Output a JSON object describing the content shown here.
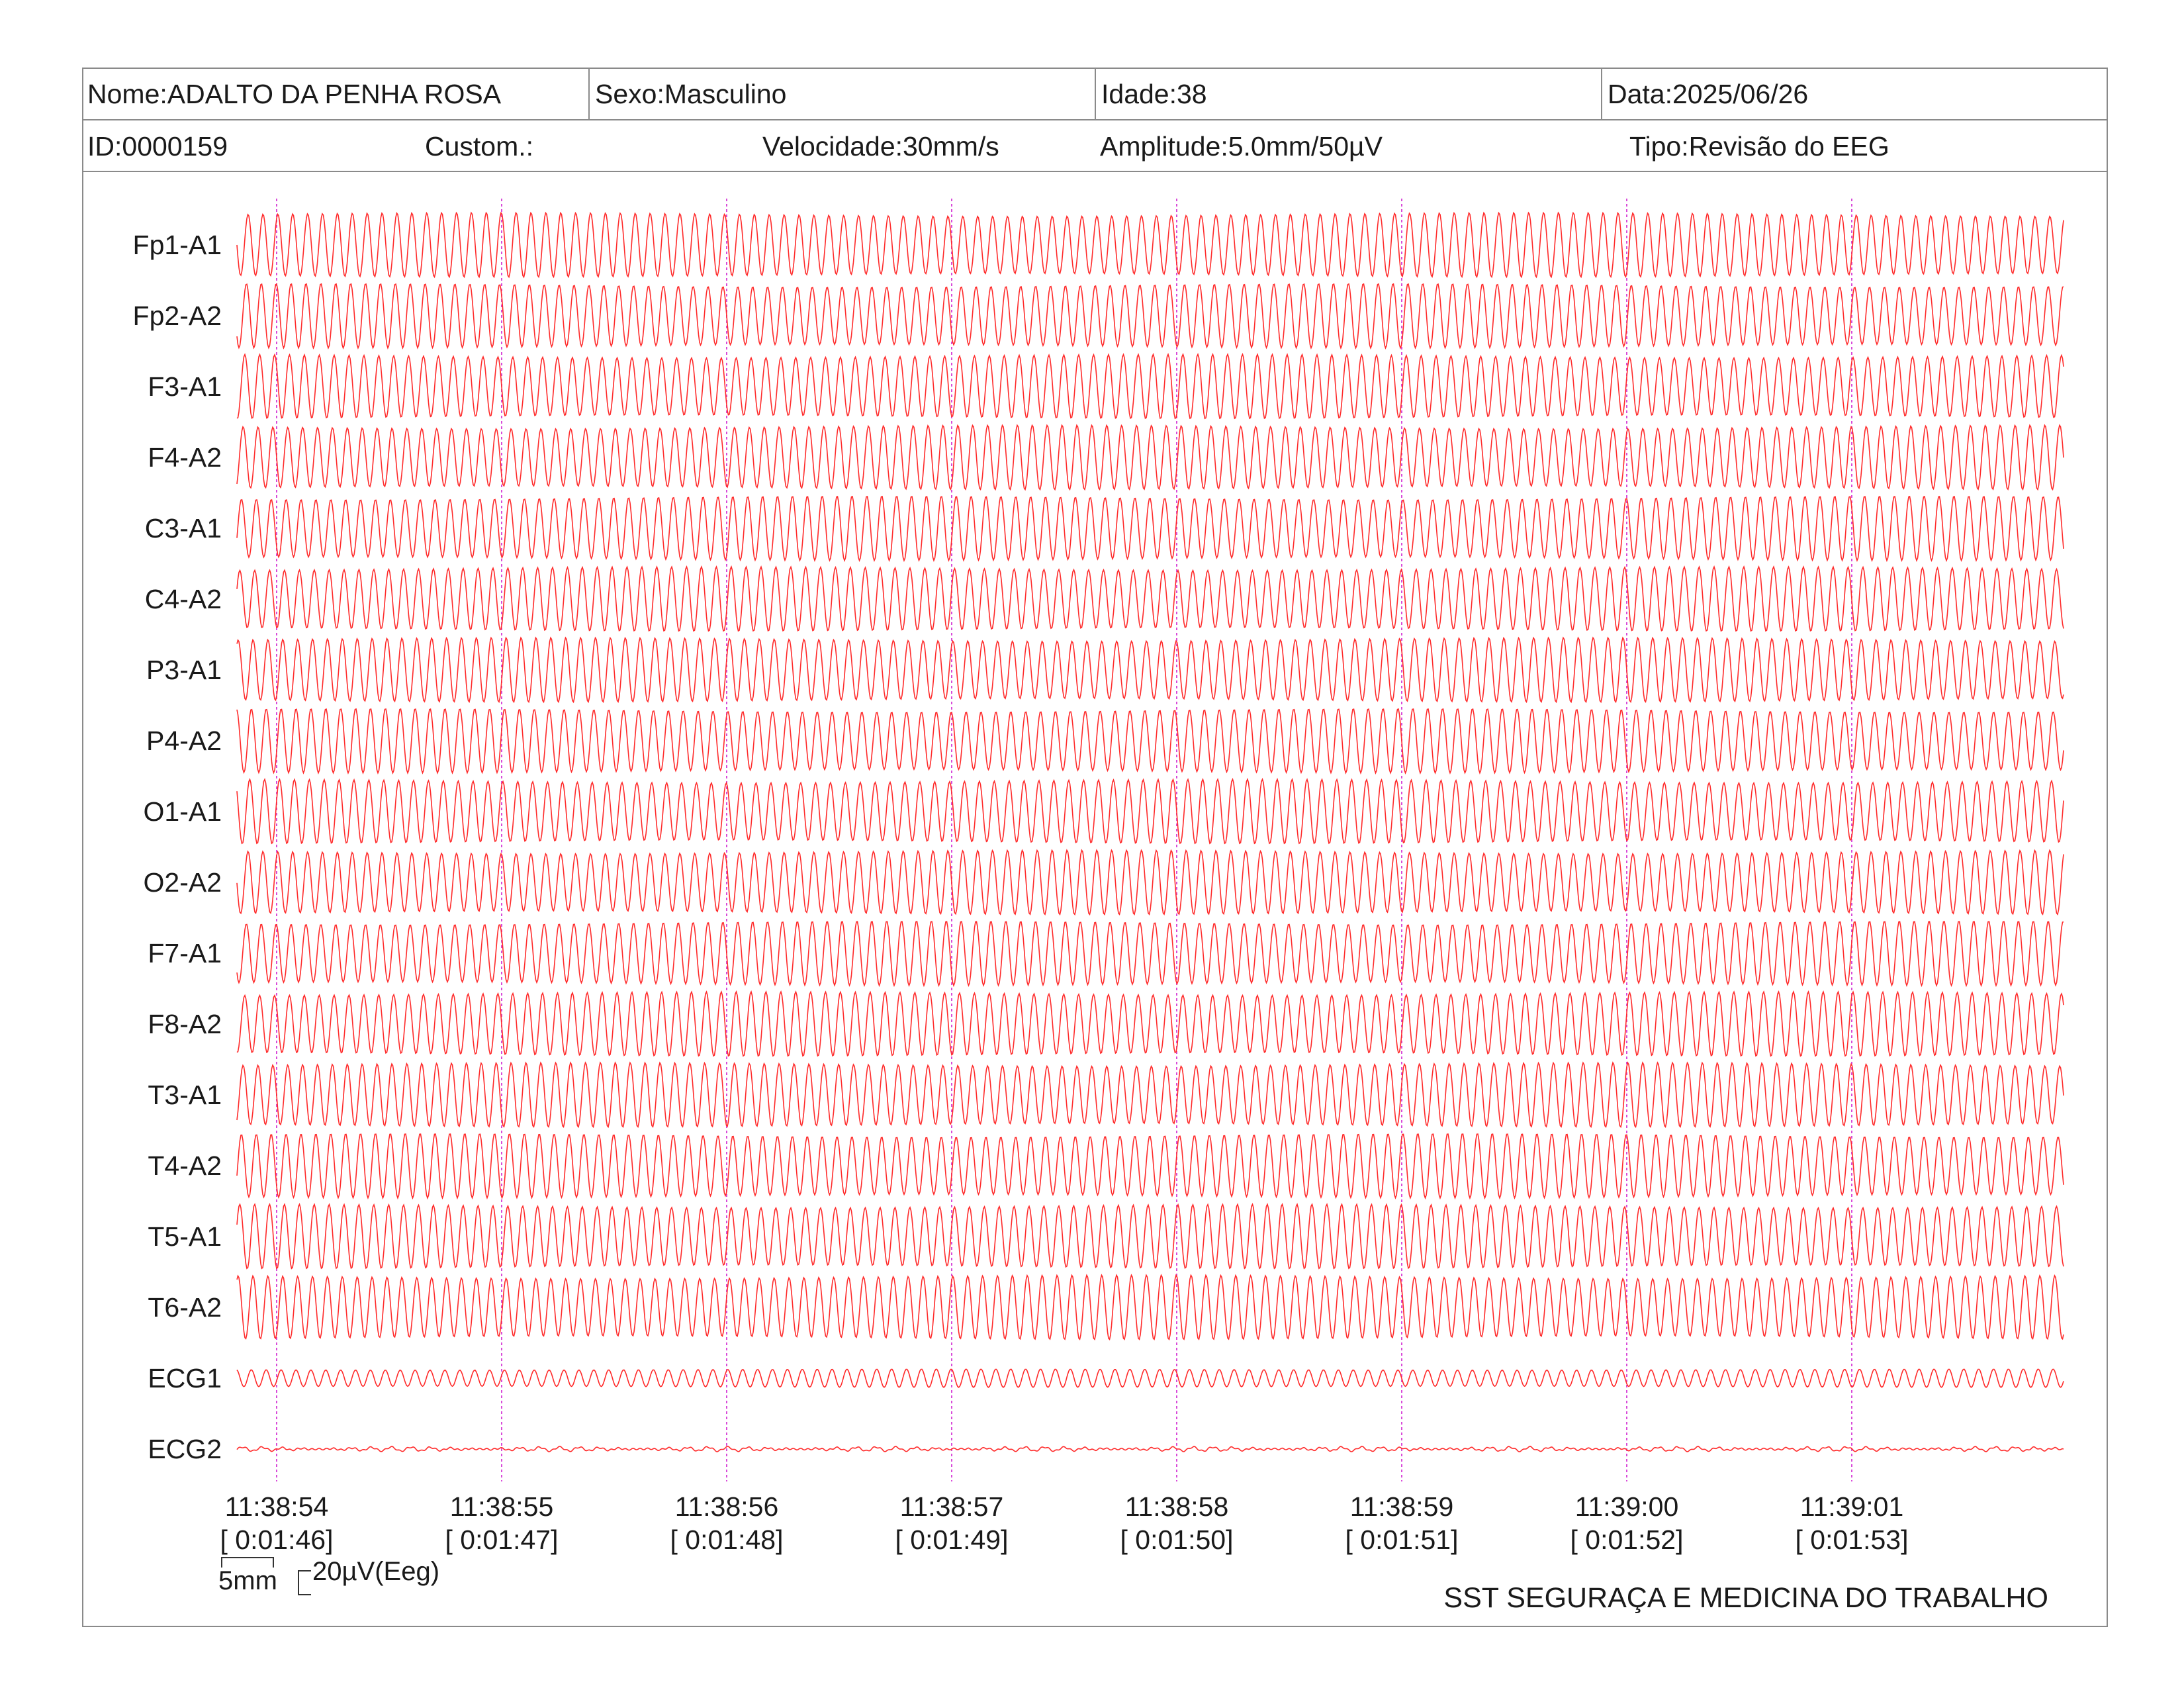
{
  "header": {
    "nome": "Nome:ADALTO DA PENHA ROSA",
    "sexo": "Sexo:Masculino",
    "idade": "Idade:38",
    "data": "Data:2025/06/26",
    "id": "ID:0000159",
    "custom": "Custom.:",
    "velocidade": "Velocidade:30mm/s",
    "amplitude": "Amplitude:5.0mm/50µV",
    "tipo": "Tipo:Revisão do EEG"
  },
  "chart_data": {
    "type": "line",
    "channels": [
      "Fp1-A1",
      "Fp2-A2",
      "F3-A1",
      "F4-A2",
      "C3-A1",
      "C4-A2",
      "P3-A1",
      "P4-A2",
      "O1-A1",
      "O2-A2",
      "F7-A1",
      "F8-A2",
      "T3-A1",
      "T4-A2",
      "T5-A1",
      "T6-A2",
      "ECG1",
      "ECG2"
    ],
    "time_marks": [
      {
        "clock": "11:38:54",
        "elapsed": "[ 0:01:46]"
      },
      {
        "clock": "11:38:55",
        "elapsed": "[ 0:01:47]"
      },
      {
        "clock": "11:38:56",
        "elapsed": "[ 0:01:48]"
      },
      {
        "clock": "11:38:57",
        "elapsed": "[ 0:01:49]"
      },
      {
        "clock": "11:38:58",
        "elapsed": "[ 0:01:50]"
      },
      {
        "clock": "11:38:59",
        "elapsed": "[ 0:01:51]"
      },
      {
        "clock": "11:39:00",
        "elapsed": "[ 0:01:52]"
      },
      {
        "clock": "11:39:01",
        "elapsed": "[ 0:01:53]"
      }
    ],
    "trace_color": "#ff2a2a",
    "marker_color": "#d94ad9"
  },
  "scale": {
    "mm_label": "5mm",
    "uv_label": "20µV(Eeg)"
  },
  "footer": {
    "company": "SST SEGURAÇA E MEDICINA DO TRABALHO"
  }
}
